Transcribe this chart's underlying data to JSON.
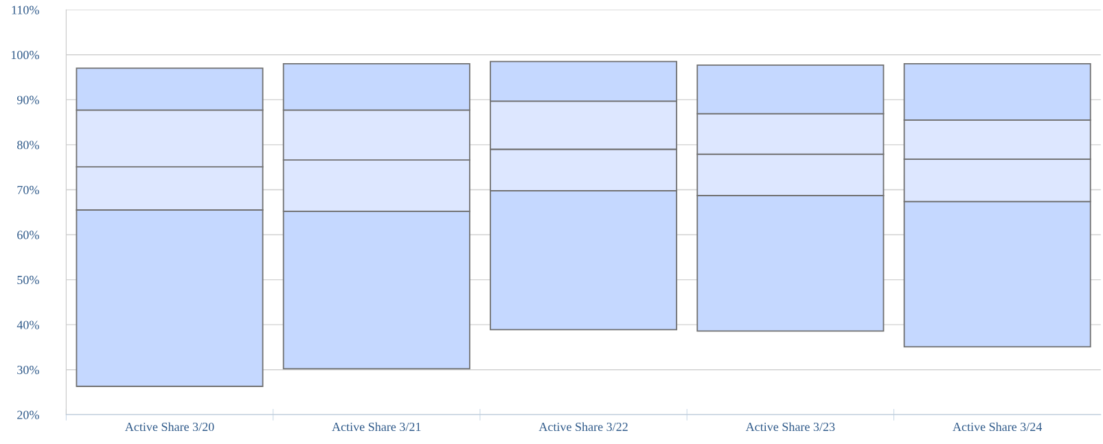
{
  "chart_data": {
    "type": "bar",
    "categories": [
      "Active Share 3/20",
      "Active Share 3/21",
      "Active Share 3/22",
      "Active Share 3/23",
      "Active Share 3/24"
    ],
    "series": [
      {
        "color": "#c5d8ff",
        "base": [
          26.3,
          30.2,
          38.9,
          38.6,
          35.1
        ],
        "values": [
          39.2,
          35.0,
          30.9,
          30.1,
          32.3
        ]
      },
      {
        "color": "#dde7ff",
        "base": [
          65.5,
          65.2,
          69.8,
          68.7,
          67.4
        ],
        "values": [
          9.6,
          11.4,
          9.2,
          9.2,
          9.4
        ]
      },
      {
        "color": "#dde7ff",
        "base": [
          75.1,
          76.6,
          79.0,
          77.9,
          76.8
        ],
        "values": [
          12.6,
          11.1,
          10.7,
          9.0,
          8.7
        ]
      },
      {
        "color": "#c5d8ff",
        "base": [
          87.7,
          87.7,
          89.7,
          86.9,
          85.5
        ],
        "values": [
          9.3,
          10.3,
          8.8,
          10.8,
          12.5
        ]
      }
    ],
    "ylim": [
      20,
      110
    ],
    "yticks": [
      {
        "value": 20,
        "label": "20%"
      },
      {
        "value": 30,
        "label": "30%"
      },
      {
        "value": 40,
        "label": "40%"
      },
      {
        "value": 50,
        "label": "50%"
      },
      {
        "value": 60,
        "label": "60%"
      },
      {
        "value": 70,
        "label": "70%"
      },
      {
        "value": 80,
        "label": "80%"
      },
      {
        "value": 90,
        "label": "90%"
      },
      {
        "value": 100,
        "label": "100%"
      },
      {
        "value": 110,
        "label": "110%"
      }
    ],
    "grid": "y",
    "legend": false
  }
}
